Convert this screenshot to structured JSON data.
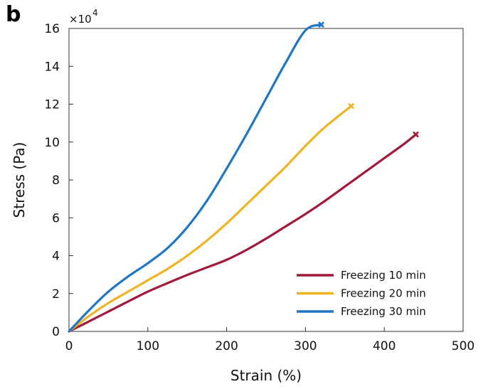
{
  "panel_label": "b",
  "chart_data": {
    "type": "line",
    "xlabel": "Strain (%)",
    "ylabel": "Stress (Pa)",
    "y_multiplier_label": "×10",
    "y_multiplier_exp": "4",
    "xlim": [
      0,
      500
    ],
    "ylim": [
      0,
      16
    ],
    "xticks": [
      0,
      100,
      200,
      300,
      400,
      500
    ],
    "yticks": [
      0,
      2,
      4,
      6,
      8,
      10,
      12,
      14,
      16
    ],
    "grid": false,
    "legend_position": "bottom-right",
    "series": [
      {
        "name": "Freezing 10 min",
        "color": "#a3193a",
        "x": [
          0,
          25,
          50,
          75,
          100,
          125,
          150,
          175,
          200,
          225,
          250,
          275,
          300,
          325,
          350,
          375,
          400,
          425,
          440
        ],
        "y": [
          0,
          0.52,
          1.05,
          1.58,
          2.1,
          2.55,
          2.98,
          3.38,
          3.78,
          4.3,
          4.9,
          5.55,
          6.2,
          6.9,
          7.65,
          8.4,
          9.15,
          9.9,
          10.4
        ]
      },
      {
        "name": "Freezing 20 min",
        "color": "#f0b323",
        "x": [
          0,
          25,
          50,
          75,
          100,
          125,
          150,
          175,
          200,
          225,
          250,
          275,
          300,
          325,
          358
        ],
        "y": [
          0,
          0.8,
          1.5,
          2.1,
          2.7,
          3.3,
          4.0,
          4.8,
          5.7,
          6.7,
          7.7,
          8.7,
          9.8,
          10.8,
          11.9
        ]
      },
      {
        "name": "Freezing 30 min",
        "color": "#1f77c4",
        "x": [
          0,
          25,
          50,
          75,
          100,
          125,
          150,
          175,
          200,
          225,
          250,
          275,
          300,
          320
        ],
        "y": [
          0,
          1.1,
          2.1,
          2.9,
          3.6,
          4.4,
          5.5,
          6.9,
          8.6,
          10.4,
          12.3,
          14.2,
          15.9,
          16.2
        ]
      }
    ]
  }
}
